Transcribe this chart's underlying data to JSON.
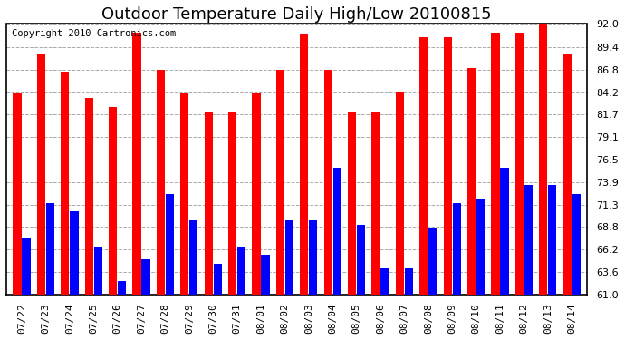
{
  "title": "Outdoor Temperature Daily High/Low 20100815",
  "copyright": "Copyright 2010 Cartronics.com",
  "dates": [
    "07/22",
    "07/23",
    "07/24",
    "07/25",
    "07/26",
    "07/27",
    "07/28",
    "07/29",
    "07/30",
    "07/31",
    "08/01",
    "08/02",
    "08/03",
    "08/04",
    "08/05",
    "08/06",
    "08/07",
    "08/08",
    "08/09",
    "08/10",
    "08/11",
    "08/12",
    "08/13",
    "08/14"
  ],
  "highs": [
    84.0,
    88.5,
    86.5,
    83.5,
    82.5,
    91.0,
    86.8,
    84.0,
    82.0,
    82.0,
    84.0,
    86.8,
    90.8,
    86.8,
    82.0,
    82.0,
    84.2,
    90.5,
    90.5,
    87.0,
    91.0,
    91.0,
    92.0,
    88.5
  ],
  "lows": [
    67.5,
    71.5,
    70.5,
    66.5,
    62.5,
    65.0,
    72.5,
    69.5,
    64.5,
    66.5,
    65.5,
    69.5,
    69.5,
    75.5,
    69.0,
    64.0,
    64.0,
    68.5,
    71.5,
    72.0,
    75.5,
    73.5,
    73.5,
    72.5
  ],
  "high_color": "#ff0000",
  "low_color": "#0000ff",
  "bg_color": "#ffffff",
  "plot_bg_color": "#ffffff",
  "grid_color": "#aaaaaa",
  "ymin": 61.0,
  "ymax": 92.0,
  "yticks": [
    61.0,
    63.6,
    66.2,
    68.8,
    71.3,
    73.9,
    76.5,
    79.1,
    81.7,
    84.2,
    86.8,
    89.4,
    92.0
  ],
  "title_fontsize": 13,
  "tick_fontsize": 8,
  "copyright_fontsize": 7.5
}
